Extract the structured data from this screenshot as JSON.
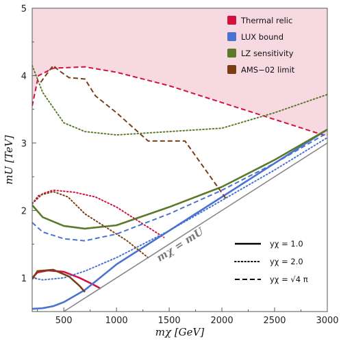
{
  "chart_data": {
    "type": "line",
    "xlabel": "mχ [GeV]",
    "ylabel": "mU [TeV]",
    "xlim": [
      200,
      3000
    ],
    "ylim": [
      0.5,
      5
    ],
    "xticks": [
      500,
      1000,
      1500,
      2000,
      2500,
      3000
    ],
    "yticks": [
      1,
      2,
      3,
      4,
      5
    ],
    "xtick_labels": [
      "500",
      "1000",
      "1500",
      "2000",
      "2500",
      "3000"
    ],
    "ytick_labels": [
      "1",
      "2",
      "3",
      "4",
      "5"
    ],
    "grid": false,
    "legend_position": "top-right",
    "legend": [
      {
        "label": "Thermal relic",
        "color": "#d4103f"
      },
      {
        "label": "LUX bound",
        "color": "#4a72d1"
      },
      {
        "label": "LZ sensitivity",
        "color": "#5a7a2a"
      },
      {
        "label": "AMS−02 limit",
        "color": "#7a3e17"
      }
    ],
    "style_legend": [
      {
        "label": "yχ = 1.0",
        "dash": "solid"
      },
      {
        "label": "yχ = 2.0",
        "dash": "dotted"
      },
      {
        "label": "yχ = √4 π",
        "dash": "dashed"
      }
    ],
    "annotation": "mχ = mU",
    "excluded_region_color": "#f7d9e2",
    "series": [
      {
        "color": "#d4103f",
        "dash": "dashed",
        "x": [
          200,
          260,
          400,
          700,
          1000,
          1500,
          2000,
          2500,
          3000
        ],
        "y": [
          3.55,
          4.0,
          4.11,
          4.13,
          4.05,
          3.85,
          3.6,
          3.35,
          3.1
        ]
      },
      {
        "color": "#d4103f",
        "dash": "dotted",
        "x": [
          200,
          300,
          400,
          600,
          800,
          1000,
          1200,
          1450
        ],
        "y": [
          2.1,
          2.25,
          2.3,
          2.27,
          2.2,
          2.05,
          1.85,
          1.6
        ]
      },
      {
        "color": "#d4103f",
        "dash": "solid",
        "x": [
          200,
          250,
          350,
          500,
          650,
          780,
          850
        ],
        "y": [
          1.0,
          1.08,
          1.11,
          1.09,
          1.0,
          0.9,
          0.84
        ]
      },
      {
        "color": "#4a72d1",
        "dash": "solid",
        "x": [
          200,
          300,
          400,
          500,
          700,
          1000,
          1500,
          2000,
          2500,
          3000
        ],
        "y": [
          0.54,
          0.55,
          0.58,
          0.64,
          0.82,
          1.2,
          1.7,
          2.2,
          2.7,
          3.2
        ]
      },
      {
        "color": "#4a72d1",
        "dash": "dotted",
        "x": [
          200,
          300,
          500,
          700,
          1000,
          1500,
          2000,
          2500,
          3000
        ],
        "y": [
          1.0,
          0.97,
          1.0,
          1.1,
          1.3,
          1.7,
          2.15,
          2.6,
          3.08
        ]
      },
      {
        "color": "#4a72d1",
        "dash": "dashed",
        "x": [
          200,
          300,
          500,
          700,
          1000,
          1500,
          2000,
          2500,
          3000
        ],
        "y": [
          1.82,
          1.68,
          1.58,
          1.55,
          1.65,
          1.95,
          2.3,
          2.7,
          3.15
        ]
      },
      {
        "color": "#5a7a2a",
        "dash": "solid",
        "x": [
          200,
          300,
          500,
          700,
          1000,
          1500,
          2000,
          2500,
          3000
        ],
        "y": [
          2.08,
          1.9,
          1.77,
          1.73,
          1.78,
          2.05,
          2.35,
          2.75,
          3.2
        ]
      },
      {
        "color": "#5a7a2a",
        "dash": "dotted",
        "x": [
          200,
          300,
          500,
          700,
          1000,
          1500,
          2000,
          2500,
          3000
        ],
        "y": [
          4.15,
          3.75,
          3.3,
          3.17,
          3.12,
          3.17,
          3.22,
          3.45,
          3.72
        ]
      },
      {
        "color": "#7a3e17",
        "dash": "solid",
        "x": [
          200,
          250,
          400,
          550,
          650,
          700
        ],
        "y": [
          0.98,
          1.1,
          1.12,
          1.02,
          0.88,
          0.79
        ]
      },
      {
        "color": "#7a3e17",
        "dash": "dotted",
        "x": [
          200,
          260,
          400,
          540,
          700,
          900,
          1100,
          1300
        ],
        "y": [
          2.1,
          2.22,
          2.28,
          2.2,
          1.95,
          1.75,
          1.55,
          1.3
        ]
      },
      {
        "color": "#7a3e17",
        "dash": "dashed",
        "x": [
          280,
          350,
          400,
          450,
          550,
          700,
          800,
          1000,
          1300,
          1650,
          2050
        ],
        "y": [
          3.9,
          4.05,
          4.15,
          4.08,
          3.97,
          3.95,
          3.7,
          3.45,
          3.03,
          3.03,
          2.15
        ]
      },
      {
        "color": "#888888",
        "dash": "solid",
        "x": [
          500,
          3000
        ],
        "y": [
          0.5,
          3.0
        ]
      }
    ]
  }
}
